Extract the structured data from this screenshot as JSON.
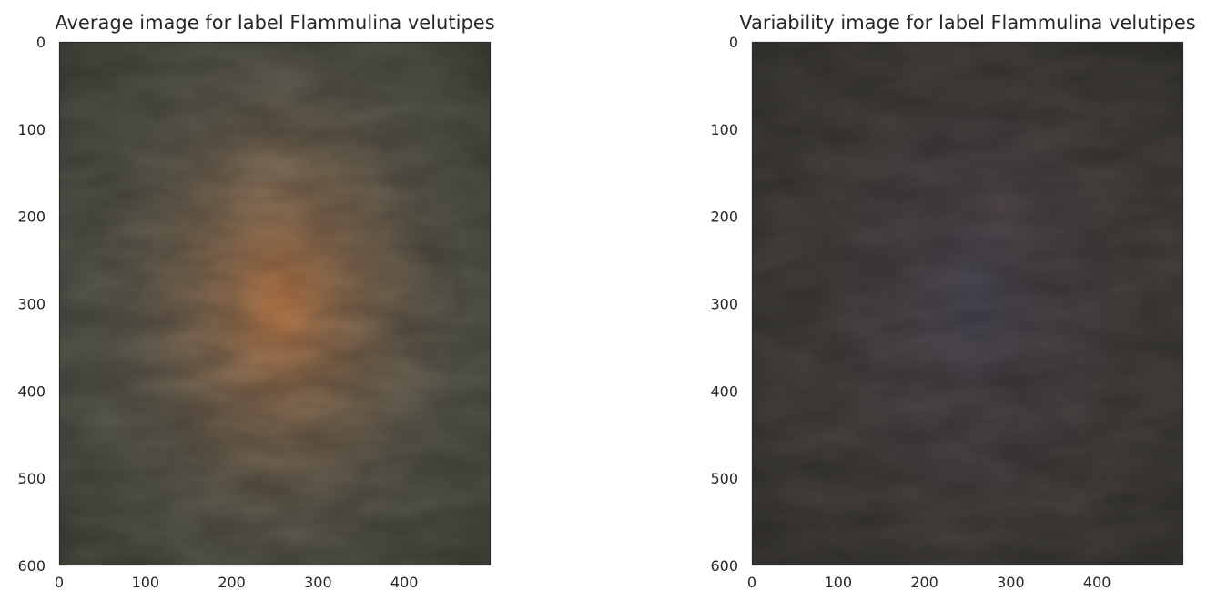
{
  "chart_data": [
    {
      "type": "heatmap",
      "image_kind": "average",
      "title": "Average image for label Flammulina velutipes",
      "xlabel": "",
      "ylabel": "",
      "xlim": [
        0,
        500
      ],
      "ylim": [
        600,
        0
      ],
      "x_ticks": [
        0,
        100,
        200,
        300,
        400
      ],
      "y_ticks": [
        0,
        100,
        200,
        300,
        400,
        500,
        600
      ],
      "grid": false,
      "colors": {
        "background": "#5b5a50",
        "edge_dark": "#3a3a32",
        "blob_outer": "#7a6a55",
        "blob_mid": "#9c7858",
        "blob_center": "#c9814b",
        "frame": "#2b2b2b"
      }
    },
    {
      "type": "heatmap",
      "image_kind": "variability",
      "title": "Variability image for label Flammulina velutipes",
      "xlabel": "",
      "ylabel": "",
      "xlim": [
        0,
        500
      ],
      "ylim": [
        600,
        0
      ],
      "x_ticks": [
        0,
        100,
        200,
        300,
        400
      ],
      "y_ticks": [
        0,
        100,
        200,
        300,
        400,
        500,
        600
      ],
      "grid": false,
      "colors": {
        "background": "#46433f",
        "edge_dark": "#33312e",
        "blob_outer": "#4d4546",
        "blob_mid": "#544a50",
        "blob_center": "#4f4d5c",
        "frame": "#2b2b2b"
      }
    }
  ]
}
